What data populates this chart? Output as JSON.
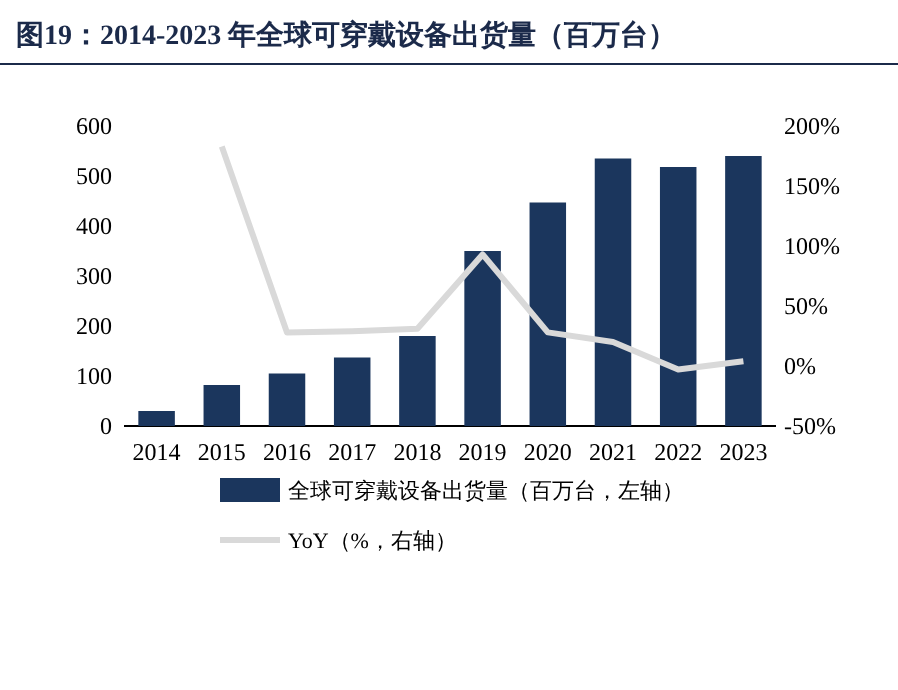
{
  "chart_data": {
    "type": "bar",
    "title": "图19：2014-2023 年全球可穿戴设备出货量（百万台）",
    "categories": [
      "2014",
      "2015",
      "2016",
      "2017",
      "2018",
      "2019",
      "2020",
      "2021",
      "2022",
      "2023"
    ],
    "series": [
      {
        "name": "全球可穿戴设备出货量（百万台，左轴）",
        "color": "#1b365d",
        "values": [
          30,
          82,
          105,
          137,
          180,
          350,
          447,
          535,
          518,
          540
        ]
      },
      {
        "name": "YoY（%，右轴）",
        "color": "#d9d9d9",
        "type": "line",
        "axis": "y2",
        "values": [
          null,
          183,
          28,
          29,
          31,
          93,
          28,
          20,
          -3,
          4
        ]
      }
    ],
    "ylim": [
      0,
      600
    ],
    "yticks": [
      0,
      100,
      200,
      300,
      400,
      500,
      600
    ],
    "y2lim": [
      -50,
      200
    ],
    "y2ticks": [
      {
        "value": -50,
        "label": "-50%"
      },
      {
        "value": 0,
        "label": "0%"
      },
      {
        "value": 50,
        "label": "50%"
      },
      {
        "value": 100,
        "label": "100%"
      },
      {
        "value": 150,
        "label": "150%"
      },
      {
        "value": 200,
        "label": "200%"
      }
    ],
    "legend": "bottom",
    "grid": false
  }
}
